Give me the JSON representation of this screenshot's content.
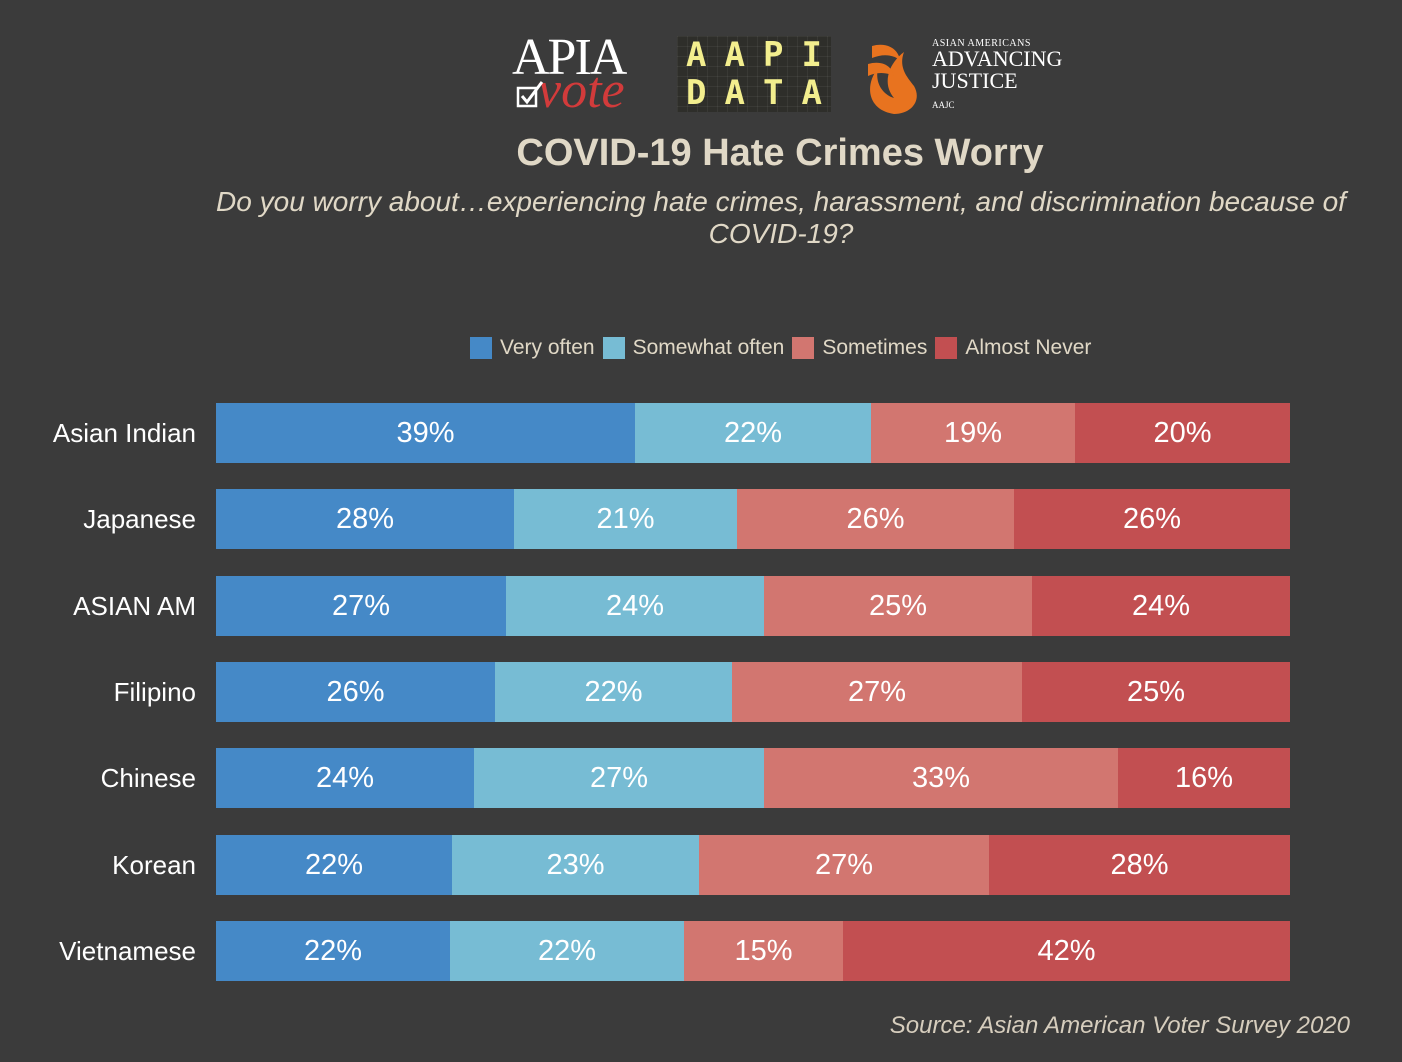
{
  "logos": {
    "apia": {
      "line1": "APIA",
      "line2": "vote"
    },
    "aapi_data": {
      "row1": [
        "A",
        "A",
        "P",
        "I"
      ],
      "row2": [
        "D",
        "A",
        "T",
        "A"
      ]
    },
    "aajc": {
      "small": "ASIAN AMERICANS",
      "big1": "ADVANCING",
      "big2": "JUSTICE",
      "tiny": "AAJC"
    }
  },
  "chart_data": {
    "type": "bar",
    "orientation": "horizontal",
    "stacked": true,
    "title": "COVID-19 Hate Crimes Worry",
    "subtitle": "Do you worry about…experiencing hate crimes, harassment, and discrimination because of COVID-19?",
    "source": "Source: Asian American Voter Survey 2020",
    "legend_position": "top",
    "grid": false,
    "xlim": [
      0,
      100
    ],
    "categories": [
      "Asian Indian",
      "Japanese",
      "ASIAN AM",
      "Filipino",
      "Chinese",
      "Korean",
      "Vietnamese"
    ],
    "series": [
      {
        "name": "Very often",
        "color": "#4589c7",
        "values": [
          39,
          28,
          27,
          26,
          24,
          22,
          22
        ]
      },
      {
        "name": "Somewhat often",
        "color": "#77bcd4",
        "values": [
          22,
          21,
          24,
          22,
          27,
          23,
          22
        ]
      },
      {
        "name": "Sometimes",
        "color": "#d27670",
        "values": [
          19,
          26,
          25,
          27,
          33,
          27,
          15
        ]
      },
      {
        "name": "Almost Never",
        "color": "#c24f51",
        "values": [
          20,
          26,
          24,
          25,
          16,
          28,
          42
        ]
      }
    ],
    "data_labels": [
      [
        "39%",
        "22%",
        "19%",
        "20%"
      ],
      [
        "28%",
        "21%",
        "26%",
        "26%"
      ],
      [
        "27%",
        "24%",
        "25%",
        "24%"
      ],
      [
        "26%",
        "22%",
        "27%",
        "25%"
      ],
      [
        "24%",
        "27%",
        "33%",
        "16%"
      ],
      [
        "22%",
        "23%",
        "27%",
        "28%"
      ],
      [
        "22%",
        "22%",
        "15%",
        "42%"
      ]
    ]
  }
}
